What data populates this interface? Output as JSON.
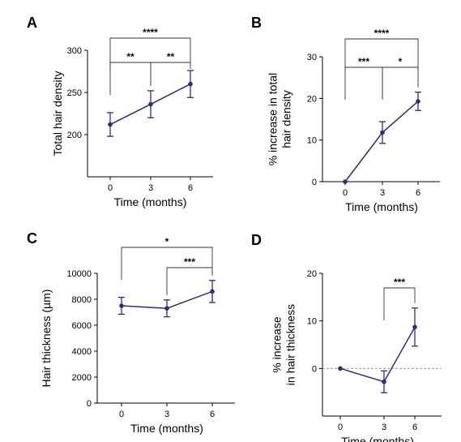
{
  "chart_data": [
    {
      "panel": "A",
      "type": "line",
      "xlabel": "Time (months)",
      "ylabel": "Total hair density",
      "x": [
        0,
        3,
        6
      ],
      "xticks": [
        "0",
        "3",
        "6"
      ],
      "ylim": [
        150,
        300
      ],
      "yticks": [
        200,
        250,
        300
      ],
      "series": [
        {
          "values": [
            212,
            236,
            260
          ],
          "error": [
            14,
            16,
            16
          ]
        }
      ],
      "significance": [
        {
          "from": 0,
          "to": 3,
          "label": "**"
        },
        {
          "from": 3,
          "to": 6,
          "label": "**"
        },
        {
          "from": 0,
          "to": 6,
          "label": "****"
        }
      ],
      "color": "#2b2f6e"
    },
    {
      "panel": "B",
      "type": "line",
      "xlabel": "Time (months)",
      "ylabel": [
        "% increase in total",
        "hair density"
      ],
      "x": [
        0,
        3,
        6
      ],
      "xticks": [
        "0",
        "3",
        "6"
      ],
      "ylim": [
        0,
        30
      ],
      "yticks": [
        0,
        10,
        20,
        30
      ],
      "series": [
        {
          "values": [
            0,
            11.8,
            19.3
          ],
          "error": [
            0,
            2.6,
            2.2
          ]
        }
      ],
      "significance": [
        {
          "from": 0,
          "to": 3,
          "label": "***"
        },
        {
          "from": 3,
          "to": 6,
          "label": "*"
        },
        {
          "from": 0,
          "to": 6,
          "label": "****"
        }
      ],
      "color": "#2b2f6e"
    },
    {
      "panel": "C",
      "type": "line",
      "xlabel": "Time (months)",
      "ylabel": "Hair thickness  (µm)",
      "x": [
        0,
        3,
        6
      ],
      "xticks": [
        "0",
        "3",
        "6"
      ],
      "ylim": [
        0,
        10000
      ],
      "yticks": [
        0,
        2000,
        4000,
        6000,
        8000,
        10000
      ],
      "series": [
        {
          "values": [
            7500,
            7300,
            8600
          ],
          "error": [
            650,
            650,
            850
          ]
        }
      ],
      "significance": [
        {
          "from": 3,
          "to": 6,
          "label": "***"
        },
        {
          "from": 0,
          "to": 6,
          "label": "*"
        }
      ],
      "color": "#2b2f6e"
    },
    {
      "panel": "D",
      "type": "line",
      "xlabel": "Time (months)",
      "ylabel": [
        "% increase",
        "in hair thickness"
      ],
      "x": [
        0,
        3,
        6
      ],
      "xticks": [
        "0",
        "3",
        "6"
      ],
      "ylim": [
        -10,
        20
      ],
      "yticks": [
        0,
        10,
        20
      ],
      "reference_line": 0,
      "series": [
        {
          "values": [
            0,
            -2.8,
            8.7
          ],
          "error": [
            0,
            2.3,
            4.0
          ]
        }
      ],
      "significance": [
        {
          "from": 3,
          "to": 6,
          "label": "***"
        }
      ],
      "color": "#2b2f6e"
    }
  ]
}
